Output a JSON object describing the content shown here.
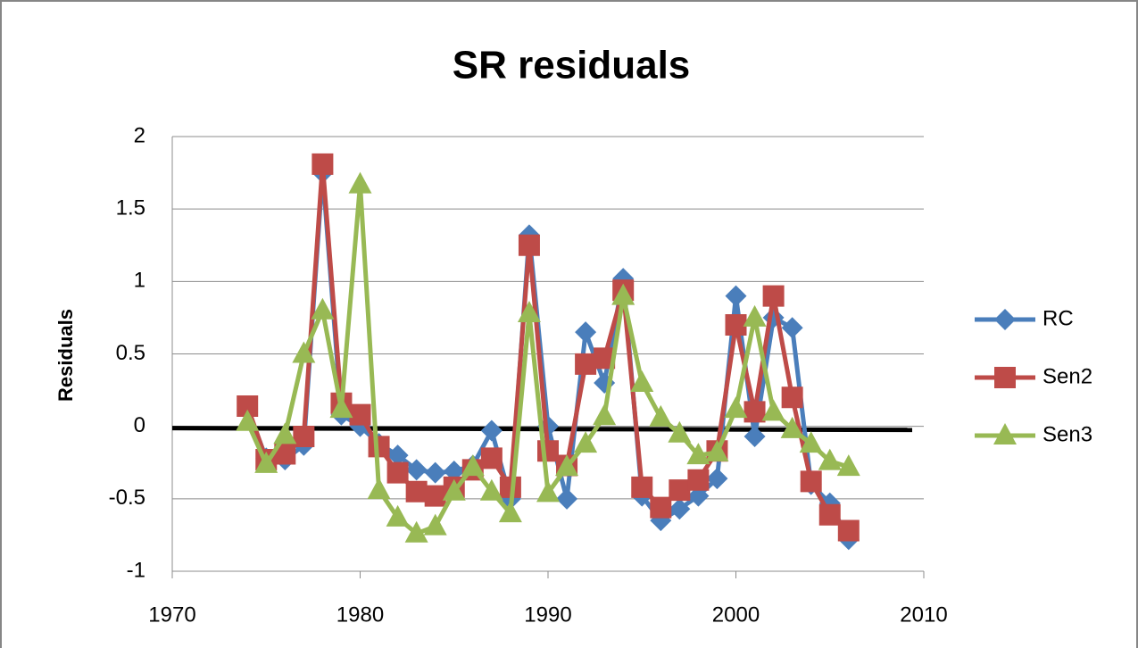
{
  "chart_data": {
    "type": "line",
    "title": "SR residuals",
    "y_label": "Residuals",
    "x": [
      1974,
      1975,
      1976,
      1977,
      1978,
      1979,
      1980,
      1981,
      1982,
      1983,
      1984,
      1985,
      1986,
      1987,
      1988,
      1989,
      1990,
      1991,
      1992,
      1993,
      1994,
      1995,
      1996,
      1997,
      1998,
      1999,
      2000,
      2001,
      2002,
      2003,
      2004,
      2005,
      2006
    ],
    "series": [
      {
        "name": "RC",
        "color": "#4a7ebb",
        "marker": "diamond",
        "values": [
          0.12,
          -0.22,
          -0.23,
          -0.13,
          1.75,
          0.08,
          0.0,
          -0.12,
          -0.2,
          -0.3,
          -0.32,
          -0.31,
          -0.27,
          -0.03,
          -0.5,
          1.32,
          0.0,
          -0.5,
          0.65,
          0.3,
          1.02,
          -0.48,
          -0.65,
          -0.57,
          -0.48,
          -0.36,
          0.9,
          -0.07,
          0.75,
          0.68,
          -0.4,
          -0.53,
          -0.78
        ]
      },
      {
        "name": "Sen2",
        "color": "#be4b48",
        "marker": "square",
        "values": [
          0.14,
          -0.23,
          -0.19,
          -0.07,
          1.81,
          0.16,
          0.08,
          -0.14,
          -0.32,
          -0.45,
          -0.48,
          -0.42,
          -0.3,
          -0.22,
          -0.42,
          1.25,
          -0.17,
          -0.27,
          0.43,
          0.47,
          0.94,
          -0.42,
          -0.56,
          -0.44,
          -0.37,
          -0.17,
          0.7,
          0.1,
          0.9,
          0.2,
          -0.38,
          -0.61,
          -0.72
        ]
      },
      {
        "name": "Sen3",
        "color": "#98b954",
        "marker": "triangle",
        "values": [
          0.03,
          -0.26,
          -0.06,
          0.5,
          0.8,
          0.12,
          1.67,
          -0.44,
          -0.63,
          -0.74,
          -0.69,
          -0.45,
          -0.28,
          -0.45,
          -0.6,
          0.78,
          -0.46,
          -0.28,
          -0.12,
          0.07,
          0.9,
          0.3,
          0.06,
          -0.05,
          -0.2,
          -0.18,
          0.12,
          0.75,
          0.1,
          -0.02,
          -0.12,
          -0.24,
          -0.28
        ]
      }
    ],
    "xlim": [
      1970,
      2010
    ],
    "xticks": [
      1970,
      1980,
      1990,
      2000,
      2010
    ],
    "ylim": [
      -1,
      2
    ],
    "yticks": [
      -1,
      -0.5,
      0,
      0.5,
      1,
      1.5,
      2
    ],
    "grid": true,
    "reference_line": 0,
    "legend": "right"
  }
}
